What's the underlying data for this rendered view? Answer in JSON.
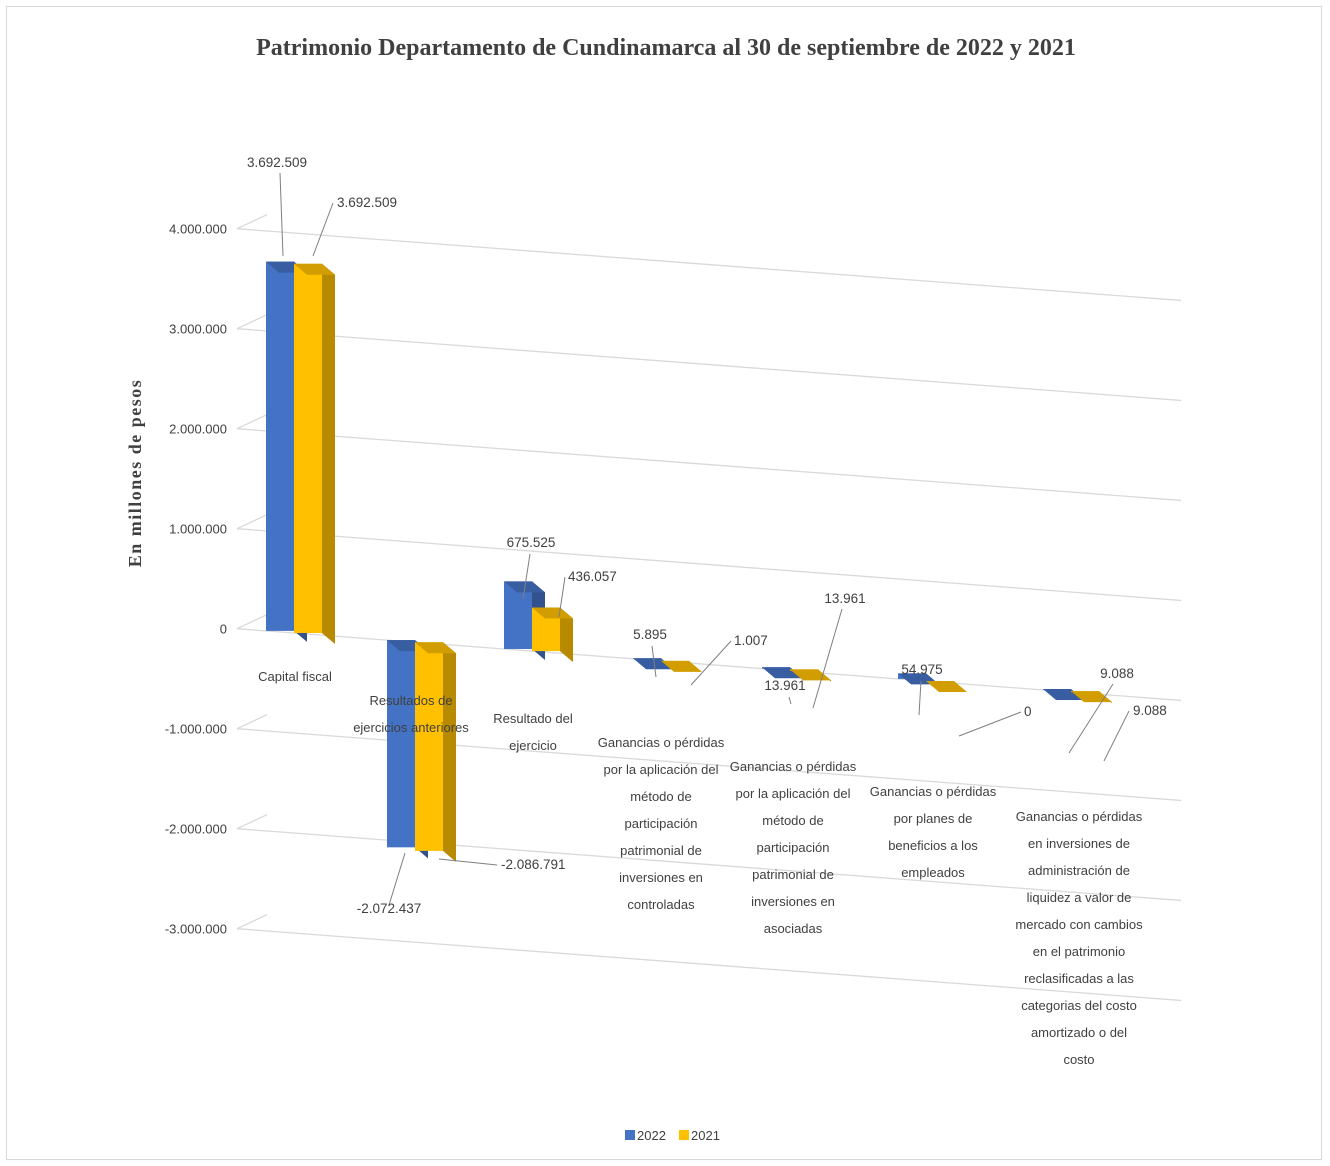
{
  "chart_data": {
    "type": "bar",
    "title": "Patrimonio Departamento de Cundinamarca  al 30 de septiembre de 2022 y 2021",
    "ylabel": "En millones de pesos",
    "xlabel": "",
    "ylim": [
      -3000000,
      4000000
    ],
    "yticks": [
      4000000,
      3000000,
      2000000,
      1000000,
      0,
      -1000000,
      -2000000,
      -3000000
    ],
    "ytick_labels": [
      "4.000.000",
      "3.000.000",
      "2.000.000",
      "1.000.000",
      "0",
      "-1.000.000",
      "-2.000.000",
      "-3.000.000"
    ],
    "grid": true,
    "legend_position": "bottom",
    "categories": [
      "Capital fiscal",
      "Resultados de ejercicios anteriores",
      "Resultado del ejercicio",
      "Ganancias o pérdidas por la aplicación del método de participación patrimonial de inversiones en controladas",
      "Ganancias o pérdidas por la aplicación del método de participación patrimonial de inversiones en asociadas",
      "Ganancias o pérdidas por planes de beneficios a los empleados",
      "Ganancias o pérdidas en inversiones de administración de liquidez a valor de mercado con cambios en el patrimonio reclasificadas a las categorias del costo amortizado o del costo"
    ],
    "category_lines": [
      [
        "Capital fiscal"
      ],
      [
        "Resultados de",
        "ejercicios anteriores"
      ],
      [
        "Resultado del",
        "ejercicio"
      ],
      [
        "Ganancias o pérdidas",
        "por la aplicación del",
        "método de",
        "participación",
        "patrimonial de",
        "inversiones en",
        "controladas"
      ],
      [
        "Ganancias o pérdidas",
        "por la aplicación del",
        "método de",
        "participación",
        "patrimonial de",
        "inversiones en",
        "asociadas"
      ],
      [
        "Ganancias o pérdidas",
        "por planes de",
        "beneficios a los",
        "empleados"
      ],
      [
        "Ganancias o pérdidas",
        "en inversiones de",
        "administración de",
        "liquidez a valor de",
        "mercado con cambios",
        "en el patrimonio",
        "reclasificadas a las",
        "categorias del costo",
        "amortizado o del",
        "costo"
      ]
    ],
    "series": [
      {
        "name": "2022",
        "color": "#4472c4",
        "values": [
          3692509,
          -2072437,
          675525,
          5895,
          13961,
          54975,
          9088
        ],
        "labels": [
          "3.692.509",
          "-2.072.437",
          "675.525",
          "5.895",
          "13.961",
          "54.975",
          "9.088"
        ]
      },
      {
        "name": "2021",
        "color": "#ffc000",
        "values": [
          3692509,
          -2086791,
          436057,
          1007,
          13961,
          0,
          9088
        ],
        "labels": [
          "3.692.509",
          "-2.086.791",
          "436.057",
          "1.007",
          "13.961",
          "0",
          "9.088"
        ]
      }
    ]
  }
}
